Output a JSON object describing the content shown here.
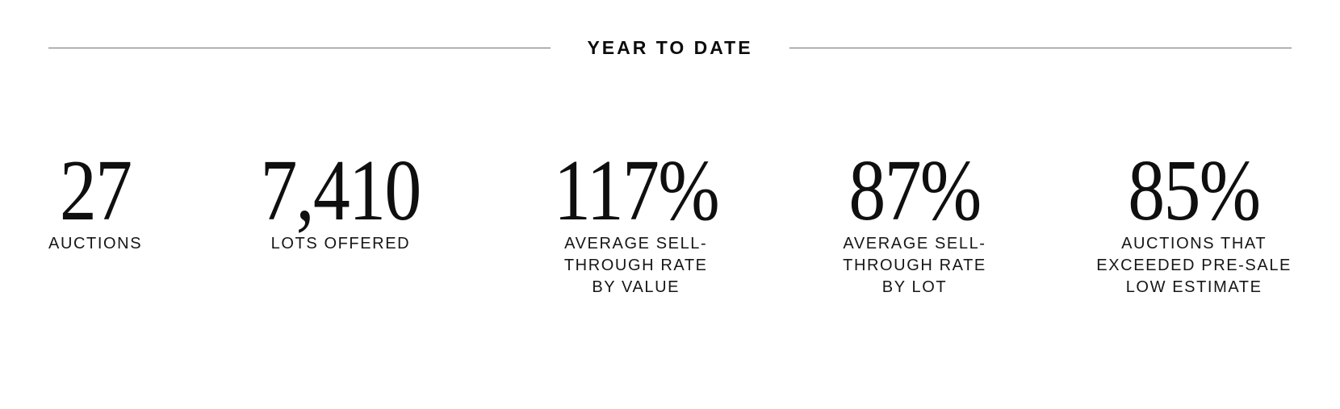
{
  "colors": {
    "background": "#ffffff",
    "text": "#0f0f0f",
    "rule": "#6f6f6f"
  },
  "header": {
    "title": "YEAR TO DATE"
  },
  "stats": [
    {
      "id": "auctions",
      "value": "27",
      "label": "AUCTIONS",
      "label_lines": [
        "AUCTIONS"
      ]
    },
    {
      "id": "lots-offered",
      "value": "7,410",
      "label": "LOTS OFFERED",
      "label_lines": [
        "LOTS OFFERED"
      ]
    },
    {
      "id": "avg-sell-through-by-value",
      "value": "117%",
      "label": "AVERAGE SELL-THROUGH RATE BY VALUE",
      "label_lines": [
        "AVERAGE SELL-",
        "THROUGH RATE",
        "BY VALUE"
      ]
    },
    {
      "id": "avg-sell-through-by-lot",
      "value": "87%",
      "label": "AVERAGE SELL-THROUGH RATE BY LOT",
      "label_lines": [
        "AVERAGE SELL-",
        "THROUGH RATE",
        "BY LOT"
      ]
    },
    {
      "id": "auctions-exceeded-low-estimate",
      "value": "85%",
      "label": "AUCTIONS THAT EXCEEDED PRE-SALE LOW ESTIMATE",
      "label_lines": [
        "AUCTIONS THAT",
        "EXCEEDED PRE-SALE",
        "LOW ESTIMATE"
      ]
    }
  ]
}
